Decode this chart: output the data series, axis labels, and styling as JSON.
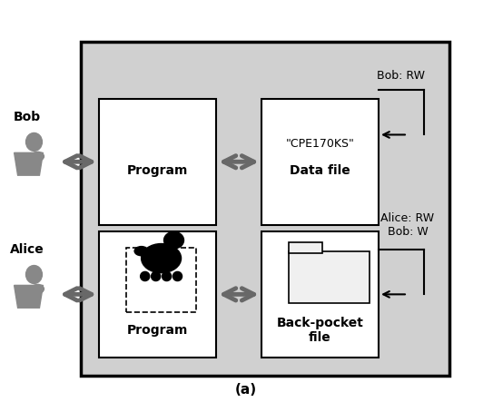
{
  "title": "(a)",
  "bg_color": "#d0d0d0",
  "bob_label": "Bob",
  "alice_label": "Alice",
  "bob_rw_label": "Bob: RW",
  "alice_rw_label": "Alice: RW\nBob: W",
  "top_data_label1": "\"CPE170KS\"",
  "top_data_label2": "Data file",
  "bot_data_label1": "Back-pocket\nfile",
  "program_label": "Program",
  "arrow_color": "#686868",
  "figsize": [
    5.43,
    4.43
  ],
  "dpi": 100
}
